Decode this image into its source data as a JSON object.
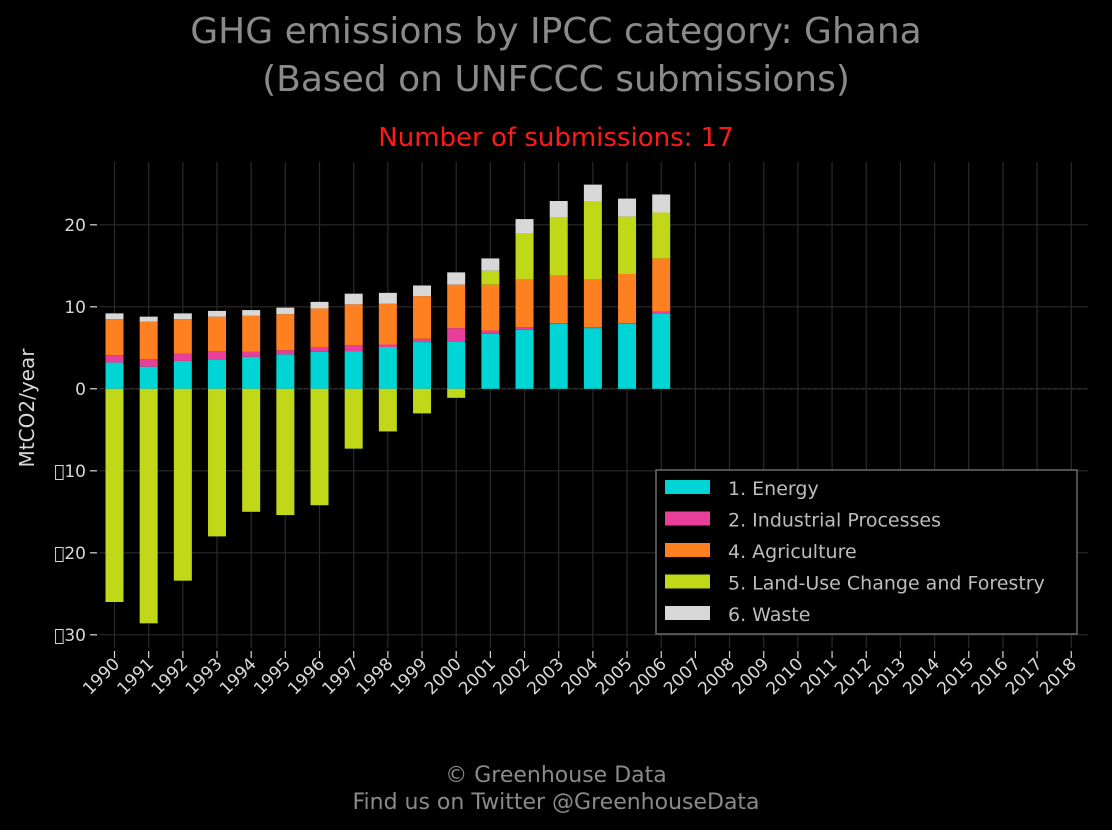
{
  "titles": {
    "line1": "GHG emissions by IPCC category: Ghana",
    "line2": "(Based on UNFCCC submissions)",
    "subtitle": "Number of submissions: 17"
  },
  "footer": {
    "line1": "© Greenhouse Data",
    "line2": "Find us on Twitter @GreenhouseData"
  },
  "colors": {
    "background": "#000000",
    "grid": "#2a2a2a",
    "subtitle": "#ff1a1a",
    "title": "#8a8a8a"
  },
  "chart_data": {
    "type": "bar",
    "stacked": true,
    "ylabel": "MtCO2/year",
    "xlabel": "",
    "ylim": [
      -31,
      27
    ],
    "yticks": [
      20,
      10,
      0,
      -10,
      -20,
      -30
    ],
    "ytick_labels": [
      "20",
      "10",
      "0",
      "\u0000​10",
      "\u0000​20",
      "\u0000​30"
    ],
    "grid": true,
    "legend_position": "bottom-right",
    "categories": [
      "1990",
      "1991",
      "1992",
      "1993",
      "1994",
      "1995",
      "1996",
      "1997",
      "1998",
      "1999",
      "2000",
      "2001",
      "2002",
      "2003",
      "2004",
      "2005",
      "2006",
      "2007",
      "2008",
      "2009",
      "2010",
      "2011",
      "2012",
      "2013",
      "2014",
      "2015",
      "2016",
      "2017",
      "2018"
    ],
    "series": [
      {
        "name": "1. Energy",
        "color": "#00d5d5",
        "values": [
          3.2,
          2.7,
          3.4,
          3.6,
          3.9,
          4.2,
          4.5,
          4.6,
          5.1,
          5.7,
          5.8,
          6.7,
          7.2,
          7.9,
          7.4,
          7.9,
          9.2,
          null,
          null,
          null,
          null,
          null,
          null,
          null,
          null,
          null,
          null,
          null,
          null
        ]
      },
      {
        "name": "2. Industrial Processes",
        "color": "#e8409a",
        "values": [
          0.9,
          0.9,
          0.9,
          1.0,
          0.6,
          0.5,
          0.6,
          0.7,
          0.3,
          0.4,
          1.6,
          0.4,
          0.3,
          0.1,
          0.1,
          0.1,
          0.2,
          null,
          null,
          null,
          null,
          null,
          null,
          null,
          null,
          null,
          null,
          null,
          null
        ]
      },
      {
        "name": "4. Agriculture",
        "color": "#ff8020",
        "values": [
          4.4,
          4.6,
          4.2,
          4.2,
          4.4,
          4.4,
          4.7,
          5.0,
          5.0,
          5.2,
          5.3,
          5.6,
          5.8,
          5.8,
          5.8,
          6.0,
          6.5,
          null,
          null,
          null,
          null,
          null,
          null,
          null,
          null,
          null,
          null,
          null,
          null
        ]
      },
      {
        "name": "5. Land-Use Change and Forestry",
        "color": "#c0d818",
        "values": [
          -26.0,
          -28.6,
          -23.4,
          -18.0,
          -15.0,
          -15.4,
          -14.2,
          -7.3,
          -5.2,
          -3.0,
          -1.1,
          1.7,
          5.6,
          7.1,
          9.5,
          7.0,
          5.6,
          null,
          null,
          null,
          null,
          null,
          null,
          null,
          null,
          null,
          null,
          null,
          null
        ]
      },
      {
        "name": "6. Waste",
        "color": "#d8d8d8",
        "values": [
          0.7,
          0.6,
          0.7,
          0.7,
          0.7,
          0.8,
          0.8,
          1.3,
          1.3,
          1.3,
          1.5,
          1.5,
          1.8,
          2.0,
          2.1,
          2.2,
          2.2,
          null,
          null,
          null,
          null,
          null,
          null,
          null,
          null,
          null,
          null,
          null,
          null
        ]
      }
    ]
  }
}
